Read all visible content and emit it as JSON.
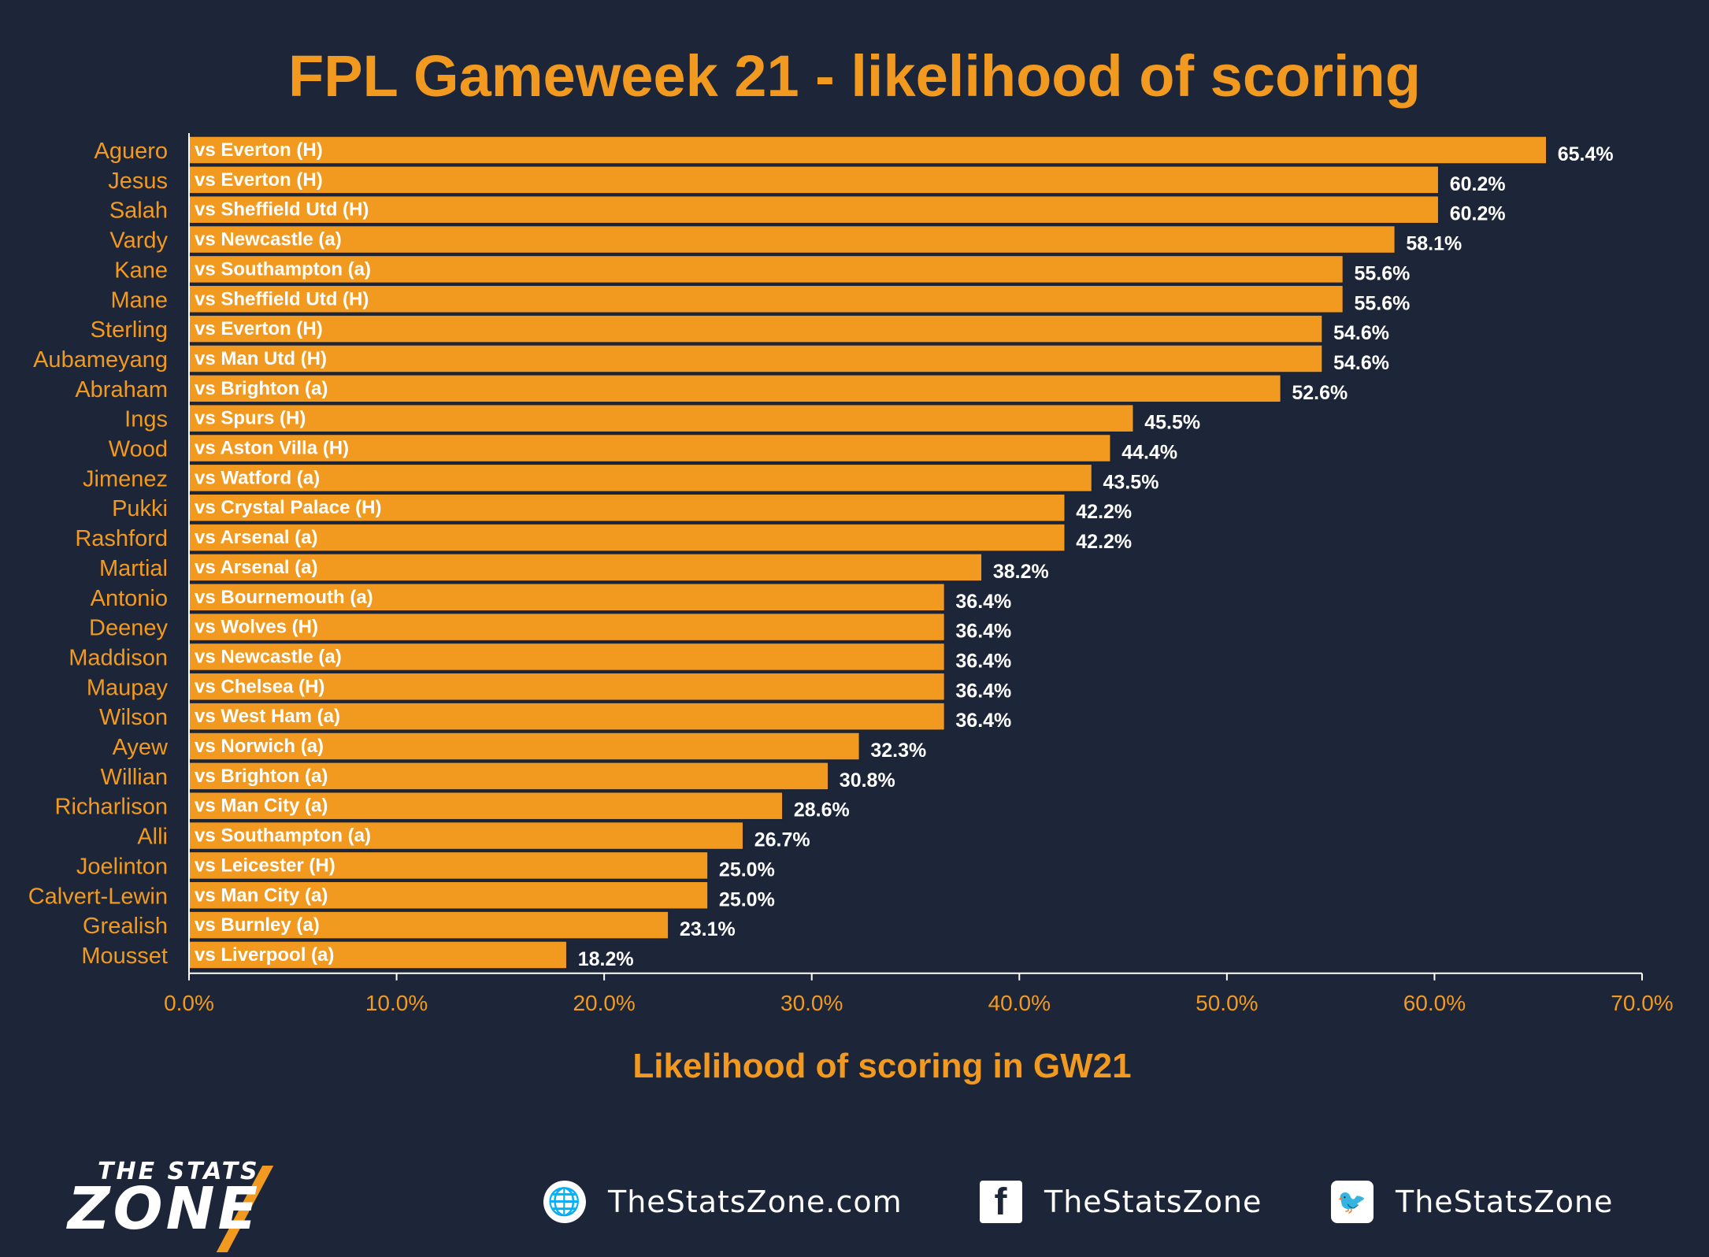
{
  "chart_data": {
    "type": "bar",
    "orientation": "horizontal",
    "title": "FPL Gameweek 21 - likelihood of scoring",
    "xlabel": "Likelihood of scoring in GW21",
    "ylabel": "",
    "xlim": [
      0,
      70
    ],
    "x_ticks": [
      "0.0%",
      "10.0%",
      "20.0%",
      "30.0%",
      "40.0%",
      "50.0%",
      "60.0%",
      "70.0%"
    ],
    "grid": false,
    "colors": {
      "background": "#1d2639",
      "bar": "#f29a1f",
      "bar_edge": "#1a2233",
      "text_accent": "#f29a1f",
      "value_label": "#ffffff",
      "axis": "#ffffff"
    },
    "categories": [
      "Aguero",
      "Jesus",
      "Salah",
      "Vardy",
      "Kane",
      "Mane",
      "Sterling",
      "Aubameyang",
      "Abraham",
      "Ings",
      "Wood",
      "Jimenez",
      "Pukki",
      "Rashford",
      "Martial",
      "Antonio",
      "Deeney",
      "Maddison",
      "Maupay",
      "Wilson",
      "Ayew",
      "Willian",
      "Richarlison",
      "Alli",
      "Joelinton",
      "Calvert-Lewin",
      "Grealish",
      "Mousset"
    ],
    "fixtures": [
      "vs Everton (H)",
      "vs Everton (H)",
      "vs Sheffield Utd (H)",
      "vs Newcastle (a)",
      "vs Southampton (a)",
      "vs Sheffield Utd (H)",
      "vs Everton (H)",
      "vs Man Utd (H)",
      "vs Brighton (a)",
      "vs Spurs (H)",
      "vs Aston Villa (H)",
      "vs Watford (a)",
      "vs Crystal Palace (H)",
      "vs Arsenal (a)",
      "vs Arsenal (a)",
      "vs Bournemouth (a)",
      "vs Wolves (H)",
      "vs Newcastle (a)",
      "vs Chelsea (H)",
      "vs West Ham (a)",
      "vs Norwich (a)",
      "vs Brighton (a)",
      "vs Man City (a)",
      "vs Southampton (a)",
      "vs Leicester (H)",
      "vs Man City (a)",
      "vs Burnley (a)",
      "vs Liverpool (a)"
    ],
    "values": [
      65.4,
      60.2,
      60.2,
      58.1,
      55.6,
      55.6,
      54.6,
      54.6,
      52.6,
      45.5,
      44.4,
      43.5,
      42.2,
      42.2,
      38.2,
      36.4,
      36.4,
      36.4,
      36.4,
      36.4,
      32.3,
      30.8,
      28.6,
      26.7,
      25.0,
      25.0,
      23.1,
      18.2
    ],
    "value_labels": [
      "65.4%",
      "60.2%",
      "60.2%",
      "58.1%",
      "55.6%",
      "55.6%",
      "54.6%",
      "54.6%",
      "52.6%",
      "45.5%",
      "44.4%",
      "43.5%",
      "42.2%",
      "42.2%",
      "38.2%",
      "36.4%",
      "36.4%",
      "36.4%",
      "36.4%",
      "36.4%",
      "32.3%",
      "30.8%",
      "28.6%",
      "26.7%",
      "25.0%",
      "25.0%",
      "23.1%",
      "18.2%"
    ]
  },
  "footer": {
    "logo_top": "THE STATS",
    "logo_big": "ZONE",
    "website": "TheStatsZone.com",
    "facebook": "TheStatsZone",
    "twitter": "TheStatsZone",
    "icons": [
      "globe-icon",
      "facebook-icon",
      "twitter-icon"
    ]
  }
}
